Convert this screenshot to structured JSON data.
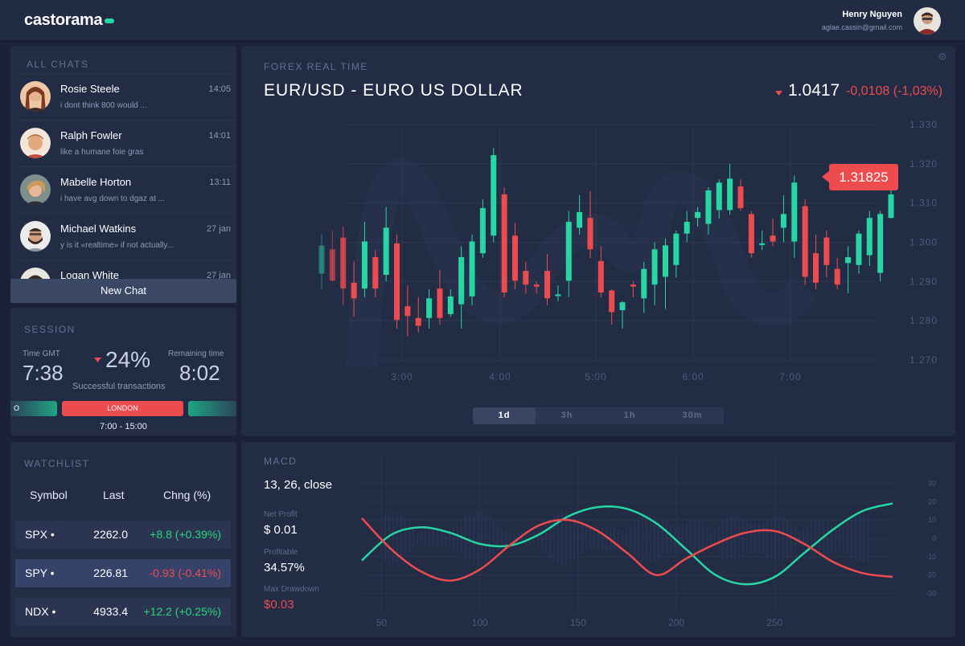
{
  "header": {
    "logo": "castorama",
    "user_name": "Henry Nguyen",
    "user_email": "aglae.cassin@gmail.com"
  },
  "chats": {
    "title": "ALL CHATS",
    "items": [
      {
        "name": "Rosie Steele",
        "time": "14:05",
        "message": "i dont think 800 would ..."
      },
      {
        "name": "Ralph Fowler",
        "time": "14:01",
        "message": "like a humane foie gras"
      },
      {
        "name": "Mabelle Horton",
        "time": "13:11",
        "message": "i have avg down to dgaz at ..."
      },
      {
        "name": "Michael Watkins",
        "time": "27 jan",
        "message": "y is it «realtime» if not actually..."
      },
      {
        "name": "Logan White",
        "time": "27 jan",
        "message": ""
      }
    ],
    "new_chat": "New Chat"
  },
  "session": {
    "title": "SESSION",
    "time_gmt_label": "Time GMT",
    "time_gmt": "7:38",
    "percent": "24%",
    "percent_caption": "Successful transactions",
    "remaining_label": "Remaining time",
    "remaining": "8:02",
    "segments": [
      "O",
      "LONDON",
      ""
    ],
    "hours": "7:00 - 15:00",
    "colors": {
      "green": "#1fa583",
      "red": "#ee4b4f"
    }
  },
  "watchlist": {
    "title": "WATCHLIST",
    "columns": [
      "Symbol",
      "Last",
      "Chng (%)"
    ],
    "rows": [
      {
        "symbol": "SPX •",
        "last": "2262.0",
        "change": "+8.8 (+0.39%)",
        "direction": "up"
      },
      {
        "symbol": "SPY •",
        "last": "226.81",
        "change": "-0.93 (-0.41%)",
        "direction": "down"
      },
      {
        "symbol": "NDX •",
        "last": "4933.4",
        "change": "+12.2 (+0.25%)",
        "direction": "up"
      }
    ]
  },
  "forex": {
    "title": "FOREX REAL TIME",
    "pair": "EUR/USD - EURO US DOLLAR",
    "price": "1.0417",
    "change": "-0,0108 (-1,03%)",
    "price_tag": "1.31825",
    "timeframes": [
      "1d",
      "3h",
      "1h",
      "30m"
    ],
    "active_timeframe": "1d"
  },
  "macd": {
    "title": "MACD",
    "params": "13, 26, close",
    "stats": [
      {
        "label": "Net Profit",
        "value": "$ 0.01"
      },
      {
        "label": "Profitable",
        "value": "34.57%"
      },
      {
        "label": "Max Drawdown",
        "value": "$0.03"
      }
    ]
  },
  "chart_data": [
    {
      "type": "candlestick",
      "x_ticks": [
        "3:00",
        "4:00",
        "5:00",
        "6:00",
        "7:00"
      ],
      "y_ticks": [
        "1.330",
        "1.320",
        "1.310",
        "1.300",
        "1.290",
        "1.280",
        "1.270"
      ],
      "ylim": [
        1.27,
        1.33
      ],
      "colors": {
        "up": "#26d7a4",
        "down": "#ee4b4f"
      },
      "candles": [
        {
          "o": 1.292,
          "h": 1.3022,
          "l": 1.288,
          "c": 1.2992
        },
        {
          "o": 1.2982,
          "h": 1.303,
          "l": 1.29,
          "c": 1.2902
        },
        {
          "o": 1.3012,
          "h": 1.304,
          "l": 1.284,
          "c": 1.2882
        },
        {
          "o": 1.2897,
          "h": 1.2952,
          "l": 1.281,
          "c": 1.2857
        },
        {
          "o": 1.2882,
          "h": 1.3052,
          "l": 1.286,
          "c": 1.3002
        },
        {
          "o": 1.2962,
          "h": 1.298,
          "l": 1.286,
          "c": 1.2882
        },
        {
          "o": 1.2917,
          "h": 1.309,
          "l": 1.29,
          "c": 1.3037
        },
        {
          "o": 1.2997,
          "h": 1.302,
          "l": 1.278,
          "c": 1.2802
        },
        {
          "o": 1.2837,
          "h": 1.289,
          "l": 1.276,
          "c": 1.2812
        },
        {
          "o": 1.2807,
          "h": 1.286,
          "l": 1.277,
          "c": 1.2787
        },
        {
          "o": 1.2807,
          "h": 1.288,
          "l": 1.278,
          "c": 1.2857
        },
        {
          "o": 1.2882,
          "h": 1.293,
          "l": 1.279,
          "c": 1.2807
        },
        {
          "o": 1.2817,
          "h": 1.288,
          "l": 1.281,
          "c": 1.2862
        },
        {
          "o": 1.2842,
          "h": 1.299,
          "l": 1.278,
          "c": 1.2962
        },
        {
          "o": 1.2862,
          "h": 1.302,
          "l": 1.284,
          "c": 1.3002
        },
        {
          "o": 1.2972,
          "h": 1.311,
          "l": 1.296,
          "c": 1.3087
        },
        {
          "o": 1.3017,
          "h": 1.324,
          "l": 1.3,
          "c": 1.3222
        },
        {
          "o": 1.3122,
          "h": 1.314,
          "l": 1.286,
          "c": 1.2872
        },
        {
          "o": 1.3017,
          "h": 1.305,
          "l": 1.288,
          "c": 1.2902
        },
        {
          "o": 1.2927,
          "h": 1.295,
          "l": 1.287,
          "c": 1.2892
        },
        {
          "o": 1.2892,
          "h": 1.29,
          "l": 1.287,
          "c": 1.2887
        },
        {
          "o": 1.2927,
          "h": 1.297,
          "l": 1.284,
          "c": 1.2857
        },
        {
          "o": 1.2867,
          "h": 1.289,
          "l": 1.285,
          "c": 1.2867
        },
        {
          "o": 1.2902,
          "h": 1.308,
          "l": 1.286,
          "c": 1.3052
        },
        {
          "o": 1.3037,
          "h": 1.312,
          "l": 1.302,
          "c": 1.3077
        },
        {
          "o": 1.3062,
          "h": 1.313,
          "l": 1.296,
          "c": 1.2982
        },
        {
          "o": 1.2952,
          "h": 1.299,
          "l": 1.286,
          "c": 1.2872
        },
        {
          "o": 1.2877,
          "h": 1.288,
          "l": 1.279,
          "c": 1.2822
        },
        {
          "o": 1.2827,
          "h": 1.285,
          "l": 1.278,
          "c": 1.2847
        },
        {
          "o": 1.2892,
          "h": 1.29,
          "l": 1.286,
          "c": 1.2887
        },
        {
          "o": 1.2857,
          "h": 1.295,
          "l": 1.282,
          "c": 1.2932
        },
        {
          "o": 1.2892,
          "h": 1.3,
          "l": 1.284,
          "c": 1.2982
        },
        {
          "o": 1.2912,
          "h": 1.301,
          "l": 1.283,
          "c": 1.2992
        },
        {
          "o": 1.2942,
          "h": 1.303,
          "l": 1.291,
          "c": 1.3022
        },
        {
          "o": 1.3022,
          "h": 1.308,
          "l": 1.3,
          "c": 1.3052
        },
        {
          "o": 1.3062,
          "h": 1.309,
          "l": 1.304,
          "c": 1.3077
        },
        {
          "o": 1.3047,
          "h": 1.314,
          "l": 1.302,
          "c": 1.3132
        },
        {
          "o": 1.3082,
          "h": 1.316,
          "l": 1.306,
          "c": 1.3152
        },
        {
          "o": 1.3082,
          "h": 1.32,
          "l": 1.307,
          "c": 1.3162
        },
        {
          "o": 1.3142,
          "h": 1.316,
          "l": 1.308,
          "c": 1.3087
        },
        {
          "o": 1.3072,
          "h": 1.308,
          "l": 1.296,
          "c": 1.2972
        },
        {
          "o": 1.2997,
          "h": 1.303,
          "l": 1.298,
          "c": 1.2997
        },
        {
          "o": 1.3017,
          "h": 1.306,
          "l": 1.299,
          "c": 1.3002
        },
        {
          "o": 1.3037,
          "h": 1.312,
          "l": 1.3,
          "c": 1.3072
        },
        {
          "o": 1.3002,
          "h": 1.317,
          "l": 1.296,
          "c": 1.3152
        },
        {
          "o": 1.3092,
          "h": 1.311,
          "l": 1.289,
          "c": 1.2912
        },
        {
          "o": 1.2972,
          "h": 1.302,
          "l": 1.288,
          "c": 1.2897
        },
        {
          "o": 1.3012,
          "h": 1.303,
          "l": 1.291,
          "c": 1.2942
        },
        {
          "o": 1.2932,
          "h": 1.296,
          "l": 1.288,
          "c": 1.2892
        },
        {
          "o": 1.2947,
          "h": 1.299,
          "l": 1.287,
          "c": 1.2962
        },
        {
          "o": 1.2942,
          "h": 1.303,
          "l": 1.292,
          "c": 1.3022
        },
        {
          "o": 1.2967,
          "h": 1.308,
          "l": 1.294,
          "c": 1.3062
        },
        {
          "o": 1.2922,
          "h": 1.308,
          "l": 1.29,
          "c": 1.3072
        },
        {
          "o": 1.3062,
          "h": 1.318,
          "l": 1.306,
          "c": 1.3122
        }
      ]
    },
    {
      "type": "line",
      "x_ticks": [
        50,
        100,
        150,
        200,
        250
      ],
      "y_ticks": [
        30,
        20,
        10,
        0,
        -10,
        -20,
        -30
      ],
      "xlim": [
        40,
        310
      ],
      "ylim": [
        -35,
        35
      ],
      "series": [
        {
          "color": "#26d7a4",
          "x": [
            40,
            55,
            70,
            85,
            100,
            115,
            130,
            145,
            160,
            175,
            190,
            205,
            220,
            235,
            250,
            265,
            280,
            295,
            310
          ],
          "y": [
            -12,
            2,
            6,
            3,
            -3,
            -4,
            2,
            12,
            17,
            16,
            8,
            -6,
            -20,
            -25,
            -21,
            -8,
            5,
            15,
            19
          ]
        },
        {
          "color": "#ee4b4f",
          "x": [
            40,
            55,
            70,
            85,
            100,
            115,
            130,
            145,
            160,
            175,
            190,
            205,
            220,
            235,
            250,
            265,
            280,
            295,
            310
          ],
          "y": [
            11,
            -6,
            -18,
            -23,
            -17,
            -4,
            7,
            10,
            4,
            -8,
            -20,
            -11,
            -3,
            3,
            4,
            -3,
            -13,
            -19,
            -21
          ]
        }
      ]
    }
  ]
}
